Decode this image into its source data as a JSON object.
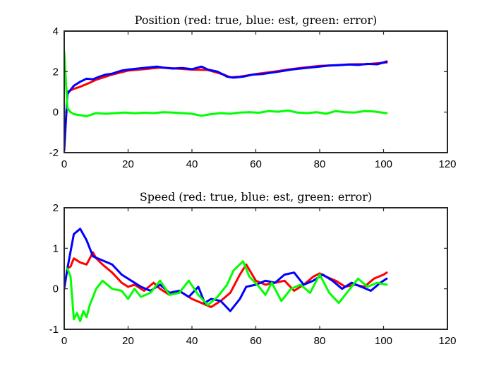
{
  "chart_data": [
    {
      "type": "line",
      "title": "Position (red: true, blue: est, green: error)",
      "xlabel": "",
      "ylabel": "",
      "xlim": [
        0,
        120
      ],
      "ylim": [
        -2,
        4
      ],
      "xticks": [
        0,
        20,
        40,
        60,
        80,
        100,
        120
      ],
      "yticks": [
        -2,
        0,
        2,
        4
      ],
      "grid": false,
      "series": [
        {
          "color": "#ff0000",
          "x": [
            1,
            3,
            5,
            8,
            10,
            15,
            20,
            25,
            30,
            35,
            40,
            45,
            50,
            52,
            55,
            60,
            65,
            70,
            75,
            80,
            85,
            90,
            95,
            101
          ],
          "y": [
            1.0,
            1.15,
            1.25,
            1.45,
            1.6,
            1.85,
            2.05,
            2.12,
            2.2,
            2.15,
            2.1,
            2.08,
            1.85,
            1.72,
            1.75,
            1.88,
            1.98,
            2.1,
            2.2,
            2.28,
            2.32,
            2.36,
            2.37,
            2.45
          ]
        },
        {
          "color": "#0000ff",
          "x": [
            0,
            1,
            2,
            3,
            5,
            7,
            9,
            11,
            13,
            15,
            18,
            20,
            23,
            26,
            29,
            31,
            34,
            37,
            40,
            43,
            45,
            48,
            51,
            53,
            56,
            59,
            62,
            65,
            68,
            71,
            74,
            77,
            80,
            83,
            86,
            89,
            92,
            95,
            98,
            101
          ],
          "y": [
            -1.9,
            0.9,
            1.1,
            1.3,
            1.5,
            1.65,
            1.62,
            1.75,
            1.85,
            1.9,
            2.05,
            2.1,
            2.15,
            2.2,
            2.25,
            2.2,
            2.15,
            2.18,
            2.12,
            2.25,
            2.1,
            2.0,
            1.75,
            1.7,
            1.75,
            1.85,
            1.88,
            1.95,
            2.02,
            2.1,
            2.15,
            2.2,
            2.25,
            2.3,
            2.32,
            2.35,
            2.33,
            2.38,
            2.36,
            2.5
          ]
        },
        {
          "color": "#00ff00",
          "x": [
            0,
            1,
            2,
            3,
            5,
            7,
            10,
            13,
            16,
            19,
            22,
            25,
            28,
            31,
            34,
            37,
            40,
            43,
            46,
            49,
            52,
            55,
            58,
            61,
            64,
            67,
            70,
            73,
            76,
            79,
            82,
            85,
            88,
            91,
            94,
            97,
            101
          ],
          "y": [
            3.0,
            0.2,
            0.0,
            -0.1,
            -0.15,
            -0.2,
            -0.05,
            -0.08,
            -0.05,
            -0.02,
            -0.06,
            -0.03,
            -0.05,
            0.0,
            -0.02,
            -0.05,
            -0.08,
            -0.18,
            -0.1,
            -0.05,
            -0.08,
            -0.02,
            0.0,
            -0.03,
            0.05,
            0.02,
            0.08,
            -0.02,
            -0.05,
            0.0,
            -0.08,
            0.05,
            0.0,
            -0.02,
            0.05,
            0.03,
            -0.05
          ]
        }
      ]
    },
    {
      "type": "line",
      "title": "Speed (red: true, blue: est, green: error)",
      "xlabel": "",
      "ylabel": "",
      "xlim": [
        0,
        120
      ],
      "ylim": [
        -1,
        2
      ],
      "xticks": [
        0,
        20,
        40,
        60,
        80,
        100,
        120
      ],
      "yticks": [
        -1,
        0,
        1,
        2
      ],
      "grid": false,
      "series": [
        {
          "color": "#ff0000",
          "x": [
            1,
            2,
            3,
            5,
            7,
            9,
            10,
            12,
            15,
            18,
            20,
            22,
            25,
            28,
            30,
            33,
            36,
            40,
            43,
            46,
            49,
            52,
            55,
            57,
            60,
            63,
            66,
            69,
            72,
            75,
            78,
            80,
            82,
            85,
            88,
            91,
            94,
            97,
            100,
            101
          ],
          "y": [
            0.5,
            0.55,
            0.75,
            0.65,
            0.6,
            0.9,
            0.75,
            0.6,
            0.4,
            0.15,
            0.05,
            0.1,
            -0.05,
            0.15,
            0.0,
            -0.15,
            -0.05,
            -0.25,
            -0.35,
            -0.45,
            -0.3,
            -0.1,
            0.35,
            0.6,
            0.2,
            0.1,
            0.15,
            0.2,
            -0.05,
            0.1,
            0.3,
            0.38,
            0.3,
            0.2,
            0.05,
            0.1,
            0.05,
            0.25,
            0.35,
            0.4
          ]
        },
        {
          "color": "#0000ff",
          "x": [
            0,
            1,
            3,
            5,
            7,
            9,
            12,
            15,
            18,
            21,
            24,
            27,
            30,
            33,
            36,
            39,
            42,
            44,
            46,
            49,
            52,
            55,
            57,
            60,
            63,
            66,
            69,
            72,
            75,
            78,
            81,
            84,
            87,
            90,
            93,
            96,
            99,
            101
          ],
          "y": [
            0.0,
            0.5,
            1.35,
            1.48,
            1.2,
            0.8,
            0.7,
            0.6,
            0.35,
            0.2,
            0.05,
            -0.05,
            0.1,
            -0.1,
            -0.05,
            -0.2,
            0.05,
            -0.35,
            -0.25,
            -0.3,
            -0.55,
            -0.25,
            0.05,
            0.1,
            0.2,
            0.15,
            0.35,
            0.4,
            0.1,
            0.2,
            0.35,
            0.2,
            0.0,
            0.15,
            0.05,
            -0.05,
            0.15,
            0.25
          ]
        },
        {
          "color": "#00ff00",
          "x": [
            1,
            2,
            3,
            4,
            5,
            6,
            7,
            8,
            10,
            12,
            15,
            18,
            20,
            22,
            24,
            27,
            30,
            33,
            36,
            39,
            42,
            45,
            48,
            51,
            53,
            56,
            58,
            61,
            63,
            65,
            68,
            71,
            74,
            77,
            80,
            83,
            86,
            89,
            92,
            95,
            98,
            101
          ],
          "y": [
            0.5,
            0.3,
            -0.75,
            -0.6,
            -0.8,
            -0.55,
            -0.7,
            -0.4,
            0.0,
            0.2,
            0.0,
            -0.05,
            -0.25,
            0.0,
            -0.2,
            -0.1,
            0.2,
            -0.15,
            -0.1,
            0.2,
            -0.15,
            -0.4,
            -0.2,
            0.1,
            0.45,
            0.68,
            0.3,
            0.05,
            -0.15,
            0.15,
            -0.3,
            0.0,
            0.1,
            -0.1,
            0.35,
            -0.1,
            -0.35,
            -0.05,
            0.25,
            0.05,
            0.15,
            0.1
          ]
        }
      ]
    }
  ]
}
